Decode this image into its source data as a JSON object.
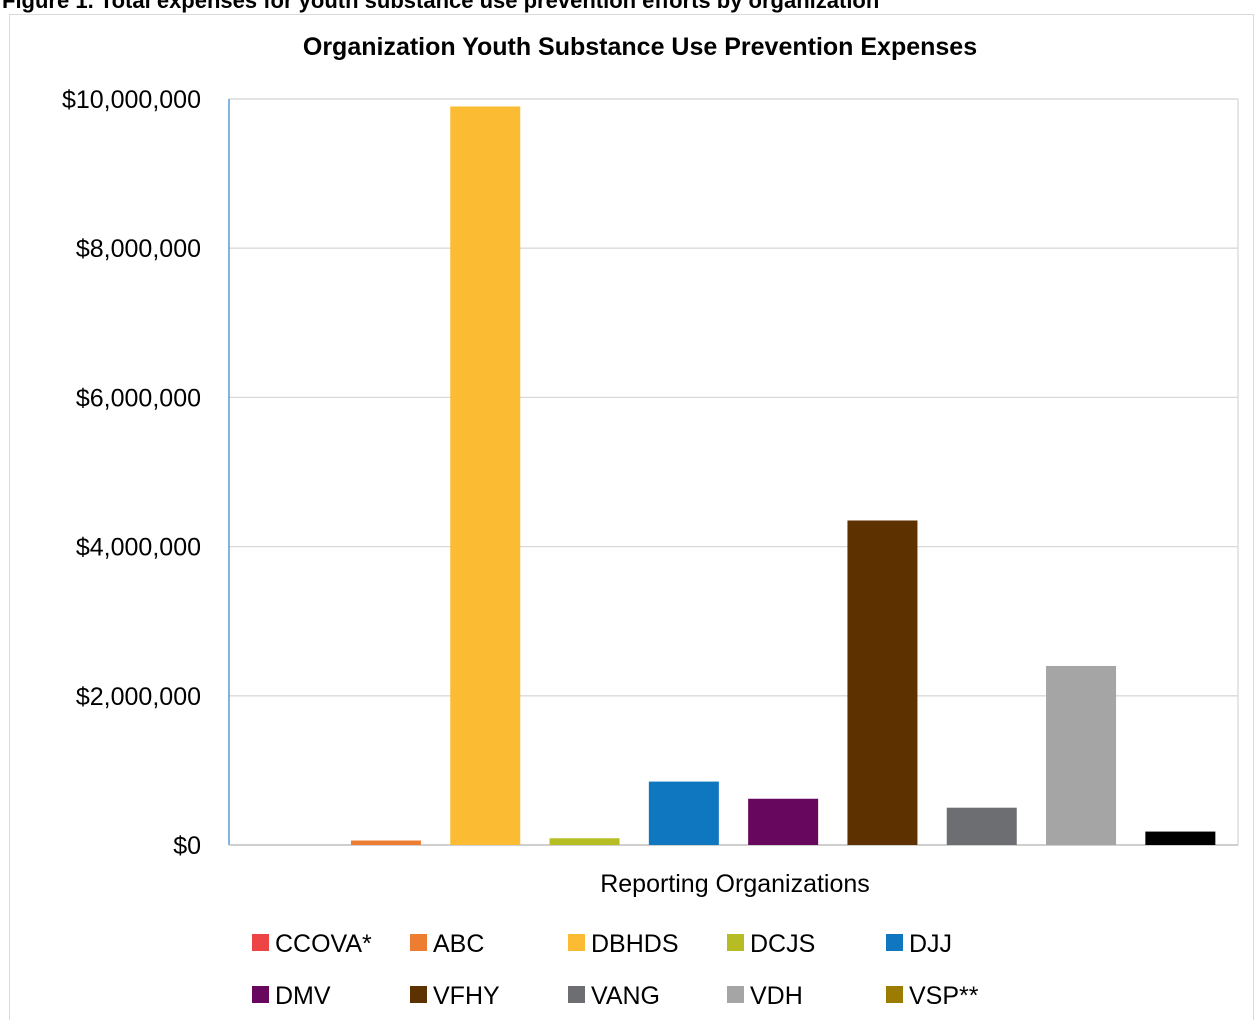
{
  "caption": "Figure 1. Total expenses for youth substance use prevention efforts by organization",
  "chart_data": {
    "type": "bar",
    "title": "Organization Youth Substance Use Prevention Expenses",
    "xlabel": "Reporting Organizations",
    "ylabel": "",
    "ylim": [
      0,
      10000000
    ],
    "yticks": [
      "$0",
      "$2,000,000",
      "$4,000,000",
      "$6,000,000",
      "$8,000,000",
      "$10,000,000"
    ],
    "grid": true,
    "legend_position": "bottom",
    "series": [
      {
        "name": "CCOVA*",
        "color": "#ed4545",
        "value": 0
      },
      {
        "name": "ABC",
        "color": "#ed7d31",
        "value": 60000
      },
      {
        "name": "DBHDS",
        "color": "#fbbc33",
        "value": 9900000
      },
      {
        "name": "DCJS",
        "color": "#b5bd22",
        "value": 90000
      },
      {
        "name": "DJJ",
        "color": "#0f77bf",
        "value": 850000
      },
      {
        "name": "DMV",
        "color": "#67075e",
        "value": 620000
      },
      {
        "name": "VFHY",
        "color": "#5e3200",
        "value": 4350000
      },
      {
        "name": "VANG",
        "color": "#6d6e72",
        "value": 500000
      },
      {
        "name": "VDH",
        "color": "#a5a5a5",
        "value": 2400000
      },
      {
        "name": "VSP**",
        "color": "#000000",
        "value": 180000
      }
    ],
    "legend": [
      {
        "name": "CCOVA*",
        "color": "#ed4545"
      },
      {
        "name": "ABC",
        "color": "#ed7d31"
      },
      {
        "name": "DBHDS",
        "color": "#fbbc33"
      },
      {
        "name": "DCJS",
        "color": "#b5bd22"
      },
      {
        "name": "DJJ",
        "color": "#0f77bf"
      },
      {
        "name": "DMV",
        "color": "#67075e"
      },
      {
        "name": "VFHY",
        "color": "#5e3200"
      },
      {
        "name": "VANG",
        "color": "#6d6e72"
      },
      {
        "name": "VDH",
        "color": "#a5a5a5"
      },
      {
        "name": "VSP**",
        "color": "#9c7c00"
      }
    ]
  }
}
